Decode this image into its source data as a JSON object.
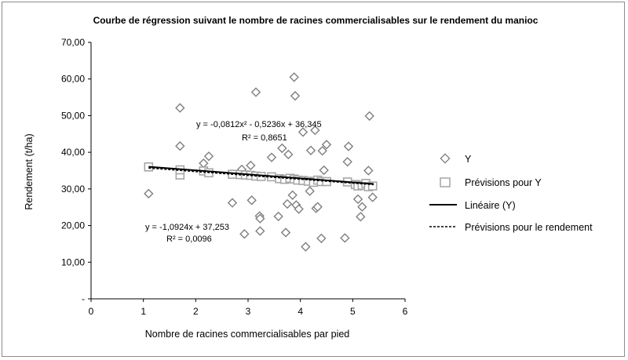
{
  "chart_data": {
    "type": "scatter",
    "title": "Courbe de régression suivant le nombre de racines commercialisables sur le rendement du manioc",
    "xlabel": "Nombre de racines commercialisables par pied",
    "ylabel": "Rendement (t/ha)",
    "xlim": [
      0,
      6
    ],
    "ylim": [
      0,
      70
    ],
    "x_ticks": [
      "0",
      "1",
      "2",
      "3",
      "4",
      "5",
      "6"
    ],
    "y_ticks": [
      "-",
      "10,00",
      "20,00",
      "30,00",
      "40,00",
      "50,00",
      "60,00",
      "70,00"
    ],
    "grid": false,
    "legend_position": "right",
    "series": [
      {
        "name": "Y",
        "marker": "diamond",
        "color": "#7f7f7f",
        "points": [
          [
            1.1,
            28.7
          ],
          [
            1.7,
            52.1
          ],
          [
            1.7,
            41.7
          ],
          [
            2.15,
            37.0
          ],
          [
            2.25,
            38.9
          ],
          [
            2.7,
            26.2
          ],
          [
            2.88,
            35.3
          ],
          [
            2.93,
            17.7
          ],
          [
            3.05,
            36.4
          ],
          [
            3.07,
            26.9
          ],
          [
            3.15,
            56.4
          ],
          [
            3.22,
            22.6
          ],
          [
            3.23,
            18.5
          ],
          [
            3.23,
            21.9
          ],
          [
            3.45,
            38.6
          ],
          [
            3.58,
            22.5
          ],
          [
            3.65,
            41.1
          ],
          [
            3.72,
            18.1
          ],
          [
            3.75,
            25.9
          ],
          [
            3.77,
            39.4
          ],
          [
            3.85,
            28.3
          ],
          [
            3.88,
            60.5
          ],
          [
            3.9,
            55.4
          ],
          [
            3.92,
            25.6
          ],
          [
            3.97,
            24.5
          ],
          [
            4.05,
            45.5
          ],
          [
            4.1,
            14.2
          ],
          [
            4.18,
            29.4
          ],
          [
            4.2,
            40.5
          ],
          [
            4.25,
            31.8
          ],
          [
            4.28,
            46.0
          ],
          [
            4.3,
            24.7
          ],
          [
            4.33,
            25.1
          ],
          [
            4.4,
            16.5
          ],
          [
            4.42,
            40.4
          ],
          [
            4.45,
            35.1
          ],
          [
            4.5,
            42.1
          ],
          [
            4.85,
            16.6
          ],
          [
            4.9,
            37.4
          ],
          [
            4.92,
            41.6
          ],
          [
            5.1,
            27.2
          ],
          [
            5.15,
            22.4
          ],
          [
            5.18,
            25.1
          ],
          [
            5.3,
            35.0
          ],
          [
            5.32,
            49.9
          ],
          [
            5.38,
            27.7
          ]
        ]
      },
      {
        "name": "Prévisions pour Y",
        "marker": "square",
        "color": "#a6a6a6",
        "points": [
          [
            1.1,
            36.0
          ],
          [
            1.7,
            33.8
          ],
          [
            1.7,
            35.2
          ],
          [
            2.15,
            34.9
          ],
          [
            2.25,
            34.4
          ],
          [
            2.7,
            34.0
          ],
          [
            2.85,
            33.9
          ],
          [
            2.95,
            33.8
          ],
          [
            3.05,
            33.7
          ],
          [
            3.15,
            33.5
          ],
          [
            3.25,
            33.4
          ],
          [
            3.45,
            33.3
          ],
          [
            3.6,
            32.8
          ],
          [
            3.7,
            32.6
          ],
          [
            3.8,
            32.9
          ],
          [
            3.88,
            32.7
          ],
          [
            3.95,
            32.4
          ],
          [
            4.05,
            32.3
          ],
          [
            4.15,
            32.1
          ],
          [
            4.25,
            31.8
          ],
          [
            4.33,
            32.4
          ],
          [
            4.4,
            32.0
          ],
          [
            4.5,
            32.0
          ],
          [
            4.9,
            31.9
          ],
          [
            5.05,
            31.2
          ],
          [
            5.1,
            30.8
          ],
          [
            5.18,
            31.0
          ],
          [
            5.25,
            31.5
          ],
          [
            5.3,
            30.6
          ],
          [
            5.38,
            30.8
          ]
        ]
      }
    ],
    "trendlines": [
      {
        "name": "Linéaire (Y)",
        "style": "solid",
        "equation": "y = -1,0924x + 37,253",
        "r2": "R² = 0,0096",
        "x": [
          1.1,
          5.4
        ],
        "y": [
          36.05,
          31.35
        ]
      },
      {
        "name": "Prévisions pour le rendement",
        "style": "dashed",
        "equation": "y = -0,0812x² - 0,5236x + 36,345",
        "r2": "R² = 0,8651",
        "x": [
          1.1,
          5.4
        ],
        "y": [
          35.68,
          31.15
        ]
      }
    ]
  }
}
